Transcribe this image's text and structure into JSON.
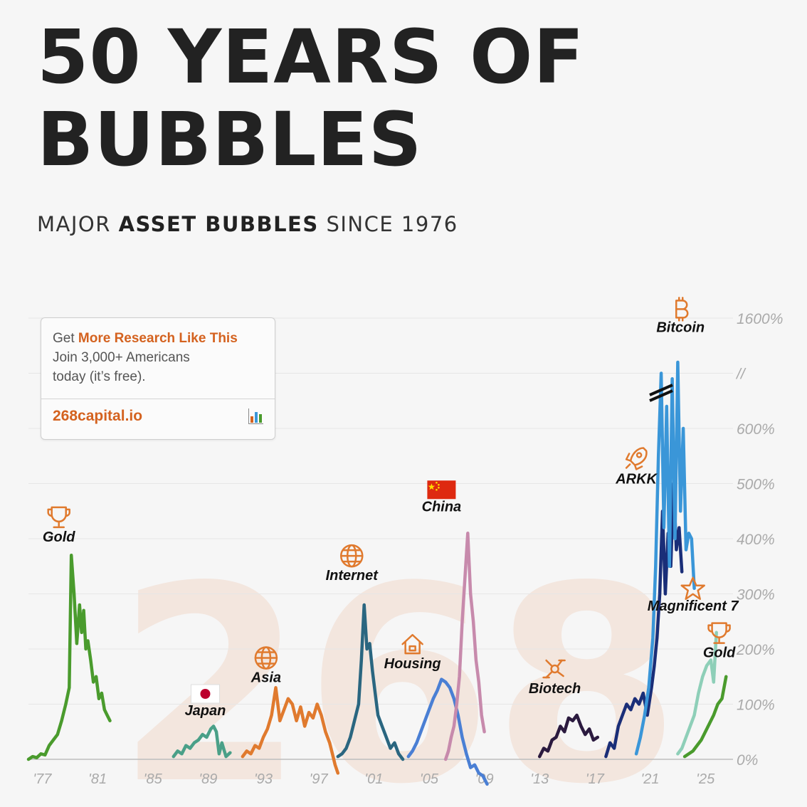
{
  "header": {
    "title_line1": "50 YEARS OF",
    "title_line2": "BUBBLES",
    "subtitle_pre": "MAJOR ",
    "subtitle_bold": "ASSET BUBBLES",
    "subtitle_post": " SINCE 1976"
  },
  "promo": {
    "line1_pre": "Get ",
    "line1_accent": "More Research Like This",
    "line2": "Join 3,000+ Americans",
    "line3": "today (it’s free).",
    "site": "268capital.io",
    "icon": "bar-chart-icon"
  },
  "watermark": "268",
  "colors": {
    "background": "#f6f6f6",
    "accent": "#d4621f",
    "axis_text": "#aaaaaa"
  },
  "chart_data": {
    "type": "line",
    "x_axis": {
      "ticks": [
        "'77",
        "'81",
        "'85",
        "'89",
        "'93",
        "'97",
        "'01",
        "'05",
        "'09",
        "'13",
        "'17",
        "'21",
        "'25"
      ],
      "tick_years": [
        1977,
        1981,
        1985,
        1989,
        1993,
        1997,
        2001,
        2005,
        2009,
        2013,
        2017,
        2021,
        2025
      ],
      "xlim": [
        1976,
        2027
      ]
    },
    "y_axis": {
      "ticks": [
        "0%",
        "100%",
        "200%",
        "300%",
        "400%",
        "500%",
        "600%",
        "//",
        "1600%"
      ],
      "tick_values": [
        0,
        100,
        200,
        300,
        400,
        500,
        600,
        700,
        800
      ],
      "axis_break": "//",
      "note": "axis is broken above 600%; top label reads 1600%",
      "ylim": [
        0,
        800
      ]
    },
    "grid": true,
    "series": [
      {
        "name": "Gold",
        "color": "#4a9b2d",
        "icon": "trophy-icon",
        "label_year": 1978.2,
        "label_value": 395,
        "x": [
          1976.0,
          1976.3,
          1976.6,
          1976.9,
          1977.2,
          1977.5,
          1977.8,
          1978.1,
          1978.4,
          1978.7,
          1978.95,
          1979.1,
          1979.3,
          1979.5,
          1979.7,
          1979.85,
          1980.0,
          1980.15,
          1980.3,
          1980.5,
          1980.7,
          1980.9,
          1981.1,
          1981.3,
          1981.5,
          1981.7,
          1981.9
        ],
        "y": [
          0,
          5,
          3,
          10,
          8,
          25,
          35,
          45,
          70,
          100,
          130,
          370,
          300,
          210,
          280,
          230,
          270,
          200,
          215,
          180,
          140,
          150,
          110,
          120,
          90,
          80,
          70
        ]
      },
      {
        "name": "Japan",
        "color": "#4aa088",
        "icon": "japan-flag-icon",
        "label_year": 1988.8,
        "label_value": 80,
        "x": [
          1986.5,
          1986.8,
          1987.1,
          1987.4,
          1987.7,
          1988.0,
          1988.3,
          1988.6,
          1988.9,
          1989.2,
          1989.4,
          1989.6,
          1989.8,
          1990.0,
          1990.3,
          1990.6
        ],
        "y": [
          5,
          15,
          10,
          25,
          20,
          30,
          35,
          45,
          40,
          55,
          60,
          50,
          10,
          30,
          5,
          12
        ]
      },
      {
        "name": "Asia",
        "color": "#e07a2e",
        "icon": "globe-icon",
        "label_year": 1993.2,
        "label_value": 140,
        "x": [
          1991.5,
          1991.8,
          1992.1,
          1992.4,
          1992.7,
          1993.0,
          1993.3,
          1993.6,
          1993.9,
          1994.2,
          1994.5,
          1994.8,
          1995.1,
          1995.4,
          1995.7,
          1996.0,
          1996.3,
          1996.6,
          1996.9,
          1997.2,
          1997.5,
          1997.8,
          1998.0,
          1998.2,
          1998.4
        ],
        "y": [
          5,
          15,
          10,
          25,
          20,
          40,
          55,
          80,
          130,
          70,
          90,
          110,
          100,
          70,
          95,
          60,
          85,
          75,
          100,
          80,
          50,
          30,
          10,
          -10,
          -25
        ]
      },
      {
        "name": "Internet",
        "color": "#2a6680",
        "icon": "globe-icon",
        "label_year": 1999.4,
        "label_value": 325,
        "x": [
          1998.4,
          1998.7,
          1999.0,
          1999.3,
          1999.6,
          1999.9,
          2000.1,
          2000.3,
          2000.5,
          2000.7,
          2000.9,
          2001.1,
          2001.3,
          2001.6,
          2001.9,
          2002.2,
          2002.5,
          2002.8,
          2003.1
        ],
        "y": [
          5,
          10,
          20,
          40,
          70,
          100,
          180,
          280,
          200,
          210,
          160,
          120,
          80,
          60,
          40,
          20,
          30,
          10,
          0
        ]
      },
      {
        "name": "Housing",
        "color": "#4a7fd4",
        "icon": "house-icon",
        "label_year": 2003.8,
        "label_value": 165,
        "x": [
          2003.5,
          2003.8,
          2004.1,
          2004.4,
          2004.7,
          2005.0,
          2005.3,
          2005.6,
          2005.9,
          2006.2,
          2006.5,
          2006.8,
          2007.1,
          2007.4,
          2007.7,
          2008.0,
          2008.3,
          2008.6,
          2008.9,
          2009.2
        ],
        "y": [
          5,
          15,
          30,
          50,
          70,
          90,
          110,
          125,
          145,
          140,
          130,
          110,
          80,
          40,
          10,
          -15,
          -10,
          -25,
          -30,
          -45
        ]
      },
      {
        "name": "China",
        "color": "#c78aac",
        "icon": "china-flag-icon",
        "label_year": 2005.9,
        "label_value": 450,
        "x": [
          2006.2,
          2006.4,
          2006.6,
          2006.8,
          2007.0,
          2007.2,
          2007.4,
          2007.6,
          2007.8,
          2008.0,
          2008.2,
          2008.4,
          2008.6,
          2008.8,
          2009.0
        ],
        "y": [
          0,
          15,
          40,
          60,
          100,
          150,
          250,
          330,
          410,
          300,
          250,
          180,
          140,
          80,
          50
        ]
      },
      {
        "name": "Biotech",
        "color": "#2b1a3f",
        "icon": "molecule-icon",
        "label_year": 2014.1,
        "label_value": 120,
        "x": [
          2013.0,
          2013.3,
          2013.6,
          2013.9,
          2014.2,
          2014.5,
          2014.8,
          2015.1,
          2015.4,
          2015.7,
          2016.0,
          2016.3,
          2016.6,
          2016.9,
          2017.2
        ],
        "y": [
          5,
          20,
          15,
          35,
          40,
          60,
          50,
          75,
          70,
          80,
          60,
          45,
          55,
          35,
          40
        ]
      },
      {
        "name": "ARKK",
        "color": "#1a2e78",
        "icon": "rocket-icon",
        "label_year": 2020.0,
        "label_value": 500,
        "x": [
          2017.8,
          2018.1,
          2018.4,
          2018.7,
          2019.0,
          2019.3,
          2019.6,
          2019.9,
          2020.2,
          2020.5,
          2020.8,
          2021.1,
          2021.3,
          2021.5,
          2021.7,
          2021.9,
          2022.1,
          2022.3,
          2022.5,
          2022.7,
          2022.9,
          2023.1,
          2023.3
        ],
        "y": [
          5,
          30,
          20,
          60,
          80,
          100,
          90,
          110,
          100,
          120,
          80,
          130,
          170,
          220,
          300,
          450,
          300,
          410,
          350,
          500,
          380,
          420,
          340
        ]
      },
      {
        "name": "Bitcoin",
        "color": "#3a96d8",
        "icon": "bitcoin-icon",
        "label_year": 2023.2,
        "label_value": 775,
        "x": [
          2020.0,
          2020.3,
          2020.6,
          2020.9,
          2021.2,
          2021.4,
          2021.6,
          2021.8,
          2022.0,
          2022.2,
          2022.4,
          2022.6,
          2022.8,
          2023.0,
          2023.2,
          2023.4,
          2023.6,
          2023.8,
          2024.0,
          2024.2
        ],
        "y": [
          10,
          40,
          80,
          130,
          220,
          350,
          550,
          700,
          420,
          640,
          350,
          690,
          400,
          720,
          450,
          600,
          380,
          410,
          400,
          310
        ]
      },
      {
        "name": "Magnificent 7",
        "color": "#8ecfb8",
        "icon": "star-icon",
        "label_year": 2024.1,
        "label_value": 270,
        "x": [
          2023.0,
          2023.3,
          2023.6,
          2023.9,
          2024.2,
          2024.5,
          2024.8,
          2025.1,
          2025.4,
          2025.6,
          2025.8
        ],
        "y": [
          10,
          20,
          40,
          60,
          80,
          120,
          150,
          170,
          180,
          140,
          230
        ]
      },
      {
        "name": "Gold",
        "color": "#4a9b2d",
        "icon": "trophy-icon",
        "label_year": 2026.0,
        "label_value": 185,
        "x": [
          2023.5,
          2023.8,
          2024.1,
          2024.4,
          2024.7,
          2025.0,
          2025.3,
          2025.6,
          2025.9,
          2026.2,
          2026.5
        ],
        "y": [
          5,
          10,
          15,
          25,
          35,
          50,
          65,
          80,
          100,
          110,
          150
        ]
      }
    ]
  }
}
